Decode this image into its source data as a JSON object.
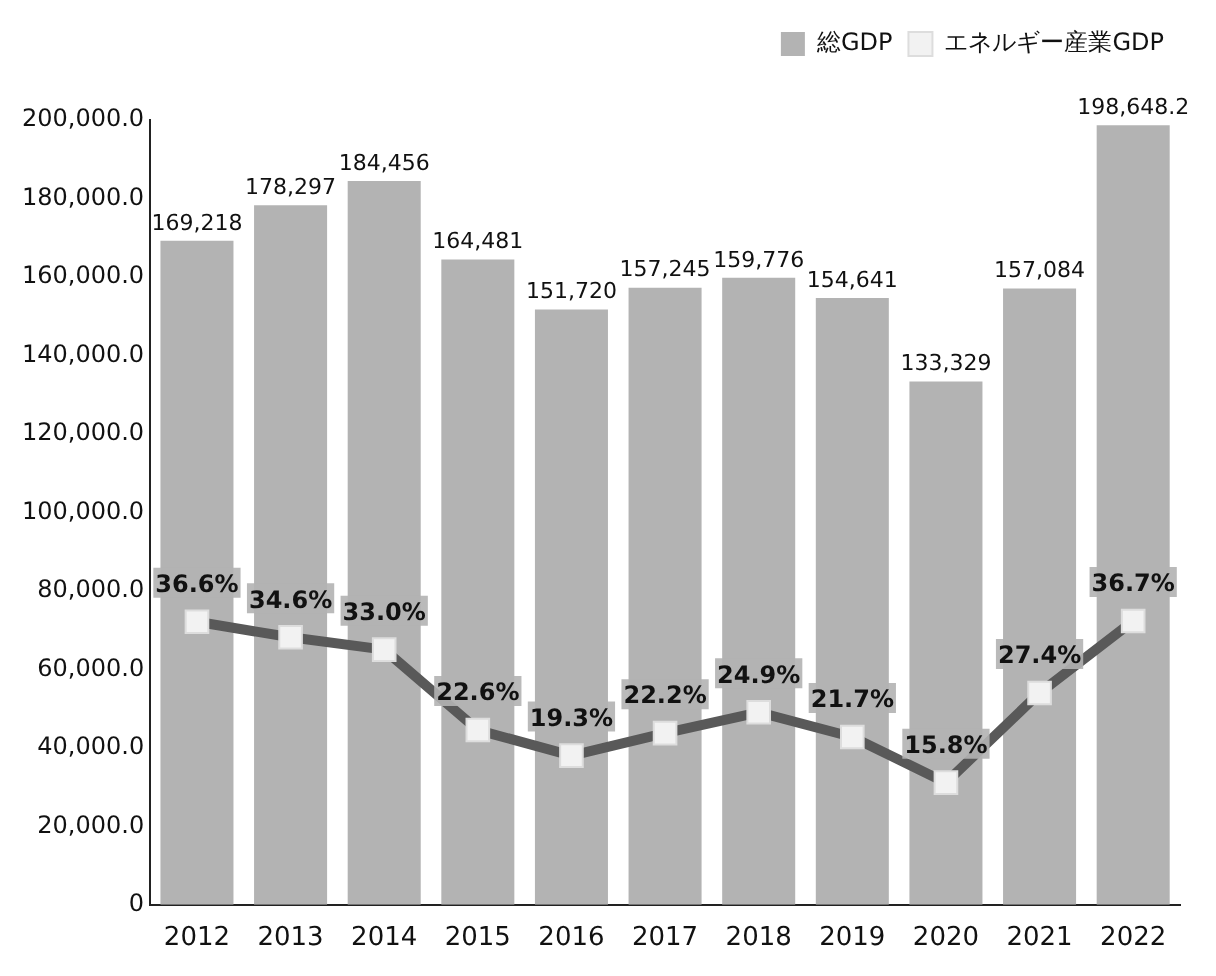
{
  "chart_data": {
    "type": "bar",
    "categories": [
      "2012",
      "2013",
      "2014",
      "2015",
      "2016",
      "2017",
      "2018",
      "2019",
      "2020",
      "2021",
      "2022"
    ],
    "series": [
      {
        "name": "総GDP",
        "color": "#b3b3b3",
        "values": [
          169218,
          178297,
          184456,
          164481,
          151720,
          157245,
          159776,
          154641,
          133329,
          157084,
          198648.2
        ],
        "value_labels": [
          "169,218",
          "178,297",
          "184,456",
          "164,481",
          "151,720",
          "157,245",
          "159,776",
          "154,641",
          "133,329",
          "157,084",
          "198,648.2"
        ]
      },
      {
        "name": "エネルギー産業GDP",
        "type": "line",
        "axis": "y2",
        "color": "#595959",
        "marker": "square",
        "values": [
          36.6,
          34.6,
          33.0,
          22.6,
          19.3,
          22.2,
          24.9,
          21.7,
          15.8,
          27.4,
          36.7
        ],
        "value_labels": [
          "36.6%",
          "34.6%",
          "33.0%",
          "22.6%",
          "19.3%",
          "22.2%",
          "24.9%",
          "21.7%",
          "15.8%",
          "27.4%",
          "36.7%"
        ]
      }
    ],
    "ylim": [
      0,
      200000
    ],
    "yticks": [
      {
        "value": 0,
        "label": "0"
      },
      {
        "value": 20000,
        "label": "20,000.0"
      },
      {
        "value": 40000,
        "label": "40,000.0"
      },
      {
        "value": 60000,
        "label": "60,000.0"
      },
      {
        "value": 80000,
        "label": "80,000.0"
      },
      {
        "value": 100000,
        "label": "100,000.0"
      },
      {
        "value": 120000,
        "label": "120,000.0"
      },
      {
        "value": 140000,
        "label": "140,000.0"
      },
      {
        "value": 160000,
        "label": "160,000.0"
      },
      {
        "value": 180000,
        "label": "180,000.0"
      },
      {
        "value": 200000,
        "label": "200,000.0"
      }
    ],
    "y2lim": [
      0,
      101.5
    ],
    "grid": false,
    "legend": "top right"
  }
}
